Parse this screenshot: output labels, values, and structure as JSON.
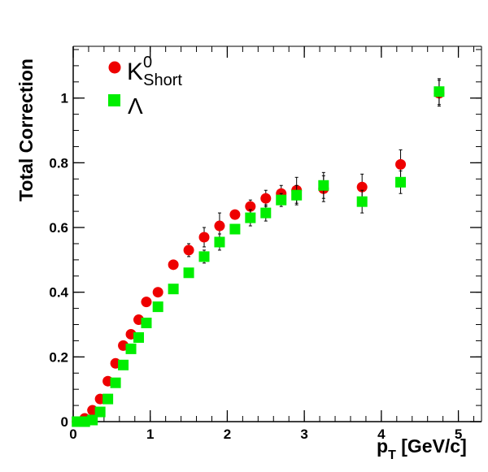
{
  "chart_data": {
    "type": "scatter",
    "xlabel_main": "p",
    "xlabel_sub": "T",
    "xlabel_unit": " [GeV/c]",
    "ylabel": "Total Correction",
    "xlim": [
      0,
      5.3
    ],
    "ylim": [
      0,
      1.16
    ],
    "x_ticks": [
      0,
      1,
      2,
      3,
      4,
      5
    ],
    "y_ticks": [
      0,
      0.2,
      0.4,
      0.6,
      0.8,
      1
    ],
    "y_tick_labels": [
      "0",
      "0.2",
      "0.4",
      "0.6",
      "0.8",
      "1"
    ],
    "x_minor_step": 0.2,
    "y_minor_step": 0.05,
    "legend_position": "top-left",
    "colors": {
      "kshort": "#ee0000",
      "lambda": "#00ee00",
      "axis": "#000000"
    },
    "series": [
      {
        "key": "kshort",
        "legend_main": "K",
        "legend_sup": "0",
        "legend_sub": "Short",
        "marker": "circle",
        "points": [
          {
            "x": 0.05,
            "y": 0.0,
            "err": 0.0
          },
          {
            "x": 0.15,
            "y": 0.01,
            "err": 0.0
          },
          {
            "x": 0.25,
            "y": 0.035,
            "err": 0.0
          },
          {
            "x": 0.35,
            "y": 0.07,
            "err": 0.0
          },
          {
            "x": 0.45,
            "y": 0.125,
            "err": 0.0
          },
          {
            "x": 0.55,
            "y": 0.18,
            "err": 0.0
          },
          {
            "x": 0.65,
            "y": 0.235,
            "err": 0.0
          },
          {
            "x": 0.75,
            "y": 0.27,
            "err": 0.0
          },
          {
            "x": 0.85,
            "y": 0.315,
            "err": 0.0
          },
          {
            "x": 0.95,
            "y": 0.37,
            "err": 0.0
          },
          {
            "x": 1.1,
            "y": 0.4,
            "err": 0.0
          },
          {
            "x": 1.3,
            "y": 0.485,
            "err": 0.0
          },
          {
            "x": 1.5,
            "y": 0.53,
            "err": 0.02
          },
          {
            "x": 1.7,
            "y": 0.57,
            "err": 0.03
          },
          {
            "x": 1.9,
            "y": 0.605,
            "err": 0.04
          },
          {
            "x": 2.1,
            "y": 0.64,
            "err": 0.0
          },
          {
            "x": 2.3,
            "y": 0.665,
            "err": 0.02
          },
          {
            "x": 2.5,
            "y": 0.69,
            "err": 0.025
          },
          {
            "x": 2.7,
            "y": 0.705,
            "err": 0.025
          },
          {
            "x": 2.9,
            "y": 0.715,
            "err": 0.04
          },
          {
            "x": 3.25,
            "y": 0.72,
            "err": 0.04
          },
          {
            "x": 3.75,
            "y": 0.725,
            "err": 0.04
          },
          {
            "x": 4.25,
            "y": 0.795,
            "err": 0.045
          },
          {
            "x": 4.75,
            "y": 1.015,
            "err": 0.04
          }
        ]
      },
      {
        "key": "lambda",
        "legend_main": "Λ",
        "legend_sup": "",
        "legend_sub": "",
        "marker": "square",
        "points": [
          {
            "x": 0.05,
            "y": 0.0,
            "err": 0.0
          },
          {
            "x": 0.15,
            "y": 0.0,
            "err": 0.0
          },
          {
            "x": 0.25,
            "y": 0.005,
            "err": 0.0
          },
          {
            "x": 0.35,
            "y": 0.03,
            "err": 0.0
          },
          {
            "x": 0.45,
            "y": 0.07,
            "err": 0.0
          },
          {
            "x": 0.55,
            "y": 0.12,
            "err": 0.0
          },
          {
            "x": 0.65,
            "y": 0.175,
            "err": 0.0
          },
          {
            "x": 0.75,
            "y": 0.225,
            "err": 0.0
          },
          {
            "x": 0.85,
            "y": 0.26,
            "err": 0.0
          },
          {
            "x": 0.95,
            "y": 0.305,
            "err": 0.0
          },
          {
            "x": 1.1,
            "y": 0.355,
            "err": 0.0
          },
          {
            "x": 1.3,
            "y": 0.41,
            "err": 0.0
          },
          {
            "x": 1.5,
            "y": 0.46,
            "err": 0.0
          },
          {
            "x": 1.7,
            "y": 0.51,
            "err": 0.02
          },
          {
            "x": 1.9,
            "y": 0.555,
            "err": 0.025
          },
          {
            "x": 2.1,
            "y": 0.595,
            "err": 0.0
          },
          {
            "x": 2.3,
            "y": 0.63,
            "err": 0.025
          },
          {
            "x": 2.5,
            "y": 0.645,
            "err": 0.025
          },
          {
            "x": 2.7,
            "y": 0.685,
            "err": 0.02
          },
          {
            "x": 2.9,
            "y": 0.7,
            "err": 0.03
          },
          {
            "x": 3.25,
            "y": 0.73,
            "err": 0.04
          },
          {
            "x": 3.75,
            "y": 0.68,
            "err": 0.035
          },
          {
            "x": 4.25,
            "y": 0.74,
            "err": 0.035
          },
          {
            "x": 4.75,
            "y": 1.02,
            "err": 0.04
          }
        ]
      }
    ]
  }
}
